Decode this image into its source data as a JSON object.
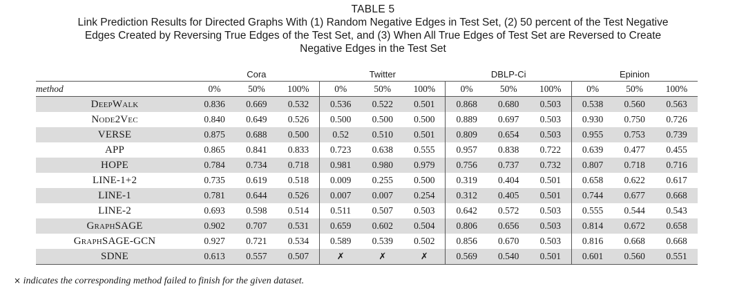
{
  "caption": {
    "table_number": "TABLE 5",
    "lines": [
      "Link Prediction Results for Directed Graphs With (1) Random Negative Edges in Test Set, (2) 50 percent of the Test Negative",
      "Edges Created by Reversing True Edges of the Test Set, and (3) When All True Edges of Test Set are Reversed to Create",
      "Negative Edges in the Test Set"
    ]
  },
  "table": {
    "datasets": [
      "Cora",
      "Twitter",
      "DBLP-Ci",
      "Epinion"
    ],
    "method_header": "method",
    "sub_headers": [
      "0%",
      "50%",
      "100%"
    ],
    "rows": [
      {
        "method": "DeepWalk",
        "values": [
          "0.836",
          "0.669",
          "0.532",
          "0.536",
          "0.522",
          "0.501",
          "0.868",
          "0.680",
          "0.503",
          "0.538",
          "0.560",
          "0.563"
        ],
        "bold": []
      },
      {
        "method": "Node2Vec",
        "values": [
          "0.840",
          "0.649",
          "0.526",
          "0.500",
          "0.500",
          "0.500",
          "0.889",
          "0.697",
          "0.503",
          "0.930",
          "0.750",
          "0.726"
        ],
        "bold": []
      },
      {
        "method": "VERSE",
        "values": [
          "0.875",
          "0.688",
          "0.500",
          "0.52",
          "0.510",
          "0.501",
          "0.809",
          "0.654",
          "0.503",
          "0.955",
          "0.753",
          "0.739"
        ],
        "bold": [
          9,
          10,
          11
        ]
      },
      {
        "method": "APP",
        "values": [
          "0.865",
          "0.841",
          "0.833",
          "0.723",
          "0.638",
          "0.555",
          "0.957",
          "0.838",
          "0.722",
          "0.639",
          "0.477",
          "0.455"
        ],
        "bold": [
          1,
          2,
          6,
          7
        ]
      },
      {
        "method": "HOPE",
        "values": [
          "0.784",
          "0.734",
          "0.718",
          "0.981",
          "0.980",
          "0.979",
          "0.756",
          "0.737",
          "0.732",
          "0.807",
          "0.718",
          "0.716"
        ],
        "bold": [
          3,
          4,
          5,
          8
        ]
      },
      {
        "method": "LINE-1+2",
        "values": [
          "0.735",
          "0.619",
          "0.518",
          "0.009",
          "0.255",
          "0.500",
          "0.319",
          "0.404",
          "0.501",
          "0.658",
          "0.622",
          "0.617"
        ],
        "bold": []
      },
      {
        "method": "LINE-1",
        "values": [
          "0.781",
          "0.644",
          "0.526",
          "0.007",
          "0.007",
          "0.254",
          "0.312",
          "0.405",
          "0.501",
          "0.744",
          "0.677",
          "0.668"
        ],
        "bold": []
      },
      {
        "method": "LINE-2",
        "values": [
          "0.693",
          "0.598",
          "0.514",
          "0.511",
          "0.507",
          "0.503",
          "0.642",
          "0.572",
          "0.503",
          "0.555",
          "0.544",
          "0.543"
        ],
        "bold": []
      },
      {
        "method": "GraphSAGE",
        "values": [
          "0.902",
          "0.707",
          "0.531",
          "0.659",
          "0.602",
          "0.504",
          "0.806",
          "0.656",
          "0.503",
          "0.814",
          "0.672",
          "0.658"
        ],
        "bold": []
      },
      {
        "method": "GraphSAGE-GCN",
        "values": [
          "0.927",
          "0.721",
          "0.534",
          "0.589",
          "0.539",
          "0.502",
          "0.856",
          "0.670",
          "0.503",
          "0.816",
          "0.668",
          "0.668"
        ],
        "bold": [
          0
        ]
      },
      {
        "method": "SDNE",
        "values": [
          "0.613",
          "0.557",
          "0.507",
          "✗",
          "✗",
          "✗",
          "0.569",
          "0.540",
          "0.501",
          "0.601",
          "0.560",
          "0.551"
        ],
        "bold": []
      }
    ]
  },
  "footnote": {
    "mark": "×",
    "text": " indicates the corresponding method failed to finish for the given dataset."
  }
}
